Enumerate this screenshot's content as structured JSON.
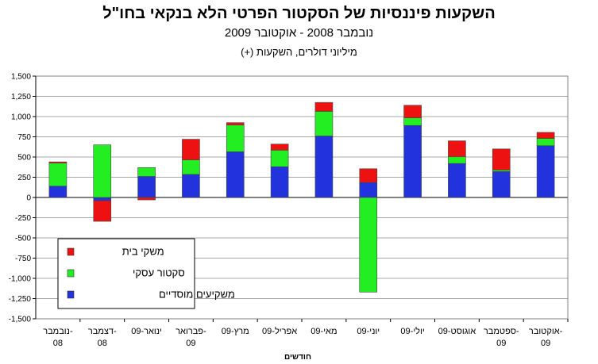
{
  "chart_data": {
    "type": "bar",
    "stacked": true,
    "title": "השקעות פיננסיות של הסקטור הפרטי הלא בנקאי בחו\"ל",
    "subtitle": "נובמבר 2008 - אוקטובר 2009",
    "unit_label": "מיליוני דולרים, השקעות (+)",
    "xlabel": "חודשים",
    "ylabel": "",
    "ylim": [
      -1500,
      1500
    ],
    "y_ticks": [
      "1,500",
      "1,250",
      "1,000",
      "750",
      "500",
      "250",
      "0",
      "-250",
      "-500",
      "-750",
      "-1,000",
      "-1,250",
      "-1,500"
    ],
    "grid": true,
    "legend_position": "bottom-left",
    "categories": [
      [
        "נובמבר-",
        "08"
      ],
      [
        "דצמבר-",
        "08"
      ],
      [
        "ינואר-09",
        ""
      ],
      [
        "פברואר-",
        "09"
      ],
      [
        "מרץ-09",
        ""
      ],
      [
        "אפריל-09",
        ""
      ],
      [
        "מאי-09",
        ""
      ],
      [
        "יוני-09",
        ""
      ],
      [
        "יולי-09",
        ""
      ],
      [
        "אוגוסט-09",
        ""
      ],
      [
        "ספטמבר-",
        "09"
      ],
      [
        "אוקטובר-",
        "09"
      ]
    ],
    "series": [
      {
        "name": "משקיעים מוסדיים",
        "color": "#2233dd",
        "values": [
          140,
          -40,
          260,
          285,
          565,
          380,
          760,
          185,
          890,
          420,
          320,
          640
        ]
      },
      {
        "name": "סקטור עסקי",
        "color": "#22ee22",
        "values": [
          285,
          650,
          110,
          180,
          330,
          205,
          305,
          -1170,
          95,
          85,
          20,
          90
        ]
      },
      {
        "name": "משקי בית",
        "color": "#ee1111",
        "values": [
          15,
          -255,
          -30,
          255,
          30,
          75,
          110,
          170,
          155,
          195,
          260,
          75
        ]
      }
    ]
  }
}
